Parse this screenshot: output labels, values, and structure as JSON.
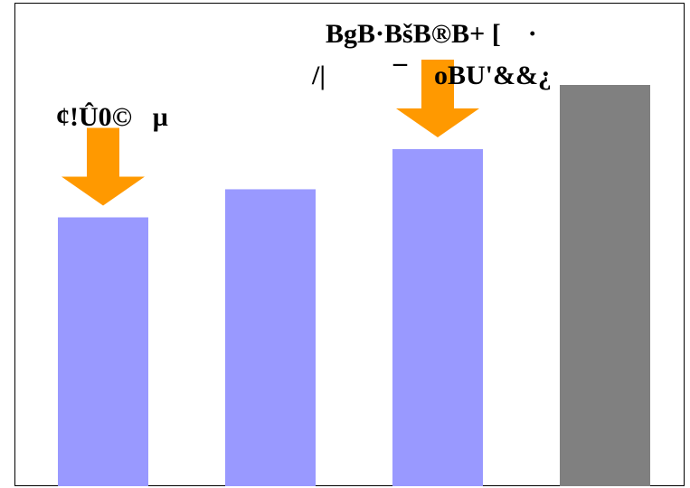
{
  "chart_data": {
    "type": "bar",
    "categories": [
      "",
      "",
      "",
      ""
    ],
    "values": [
      67,
      74,
      84,
      100
    ],
    "ylim": [
      0,
      110
    ],
    "grid": false,
    "legend": "none",
    "bar_colors": [
      "#9999ff",
      "#9999ff",
      "#9999ff",
      "#808080"
    ],
    "arrow_color": "#ff9900",
    "annotations": [
      {
        "target_bar": 0,
        "lines": [
          "¢!Û0©   µ"
        ]
      },
      {
        "target_bar": 2,
        "lines": [
          "BgB·BšB®B+ [    ·",
          "/|          ¯    oBU'&&¿"
        ]
      }
    ]
  }
}
